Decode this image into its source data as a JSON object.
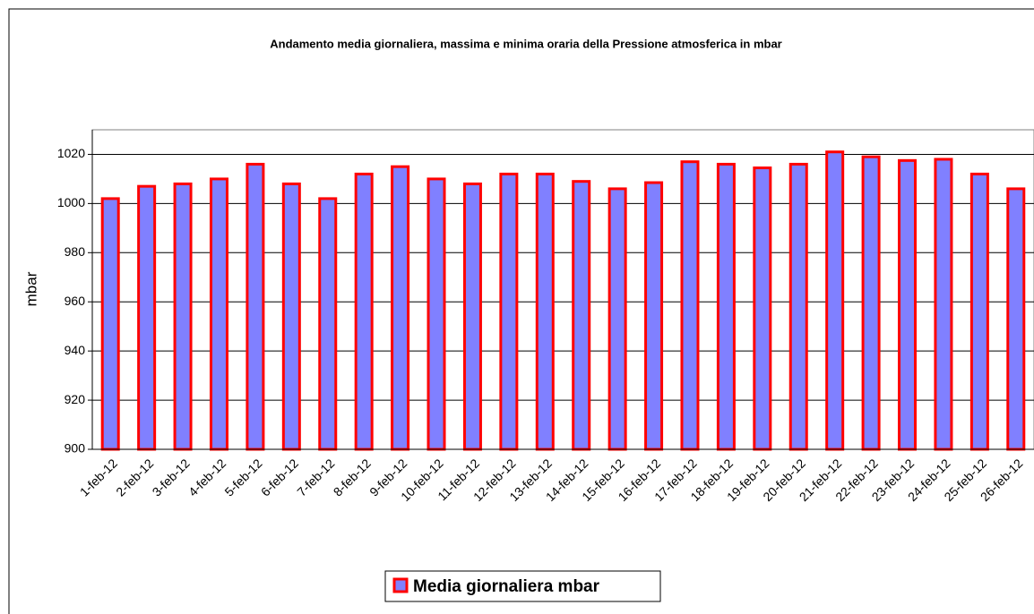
{
  "chart_data": {
    "type": "bar",
    "title": "Andamento media giornaliera, massima e minima oraria della Pressione atmosferica in mbar",
    "y_label": "mbar",
    "categories": [
      "1-feb-12",
      "2-feb-12",
      "3-feb-12",
      "4-feb-12",
      "5-feb-12",
      "6-feb-12",
      "7-feb-12",
      "8-feb-12",
      "9-feb-12",
      "10-feb-12",
      "11-feb-12",
      "12-feb-12",
      "13-feb-12",
      "14-feb-12",
      "15-feb-12",
      "16-feb-12",
      "17-feb-12",
      "18-feb-12",
      "19-feb-12",
      "20-feb-12",
      "21-feb-12",
      "22-feb-12",
      "23-feb-12",
      "24-feb-12",
      "25-feb-12",
      "26-feb-12"
    ],
    "series": [
      {
        "name": "Media giornaliera mbar",
        "color": "#8080ff",
        "edge_color": "#ff0000",
        "values": [
          1002,
          1007,
          1008,
          1010,
          1016,
          1008,
          1002,
          1012,
          1015,
          1010,
          1008,
          1012,
          1012,
          1009,
          1006,
          1008.5,
          1017,
          1016,
          1014.5,
          1016,
          1021,
          1019,
          1017.5,
          1018,
          1012,
          1006
        ]
      }
    ],
    "ylim": [
      900,
      1030
    ],
    "yticks": [
      900,
      920,
      940,
      960,
      980,
      1000,
      1020
    ],
    "grid": true,
    "legend": "bottom"
  }
}
